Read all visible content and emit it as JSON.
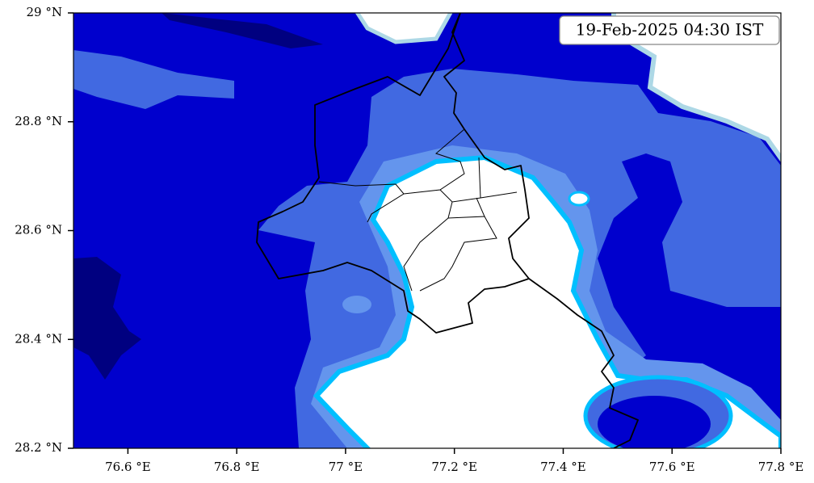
{
  "map": {
    "timestamp": "19-Feb-2025 04:30 IST",
    "xlim": [
      76.5,
      77.8
    ],
    "ylim": [
      28.2,
      29
    ],
    "xticks": [
      {
        "value": 76.6,
        "label": "76.6 °E"
      },
      {
        "value": 76.8,
        "label": "76.8 °E"
      },
      {
        "value": 77,
        "label": "77 °E"
      },
      {
        "value": 77.2,
        "label": "77.2 °E"
      },
      {
        "value": 77.4,
        "label": "77.4 °E"
      },
      {
        "value": 77.6,
        "label": "77.6 °E"
      },
      {
        "value": 77.8,
        "label": "77.8 °E"
      }
    ],
    "yticks": [
      {
        "value": 28.2,
        "label": "28.2 °N"
      },
      {
        "value": 28.4,
        "label": "28.4 °N"
      },
      {
        "value": 28.6,
        "label": "28.6 °N"
      },
      {
        "value": 28.8,
        "label": "28.8 °N"
      },
      {
        "value": 29,
        "label": "29 °N"
      }
    ]
  }
}
